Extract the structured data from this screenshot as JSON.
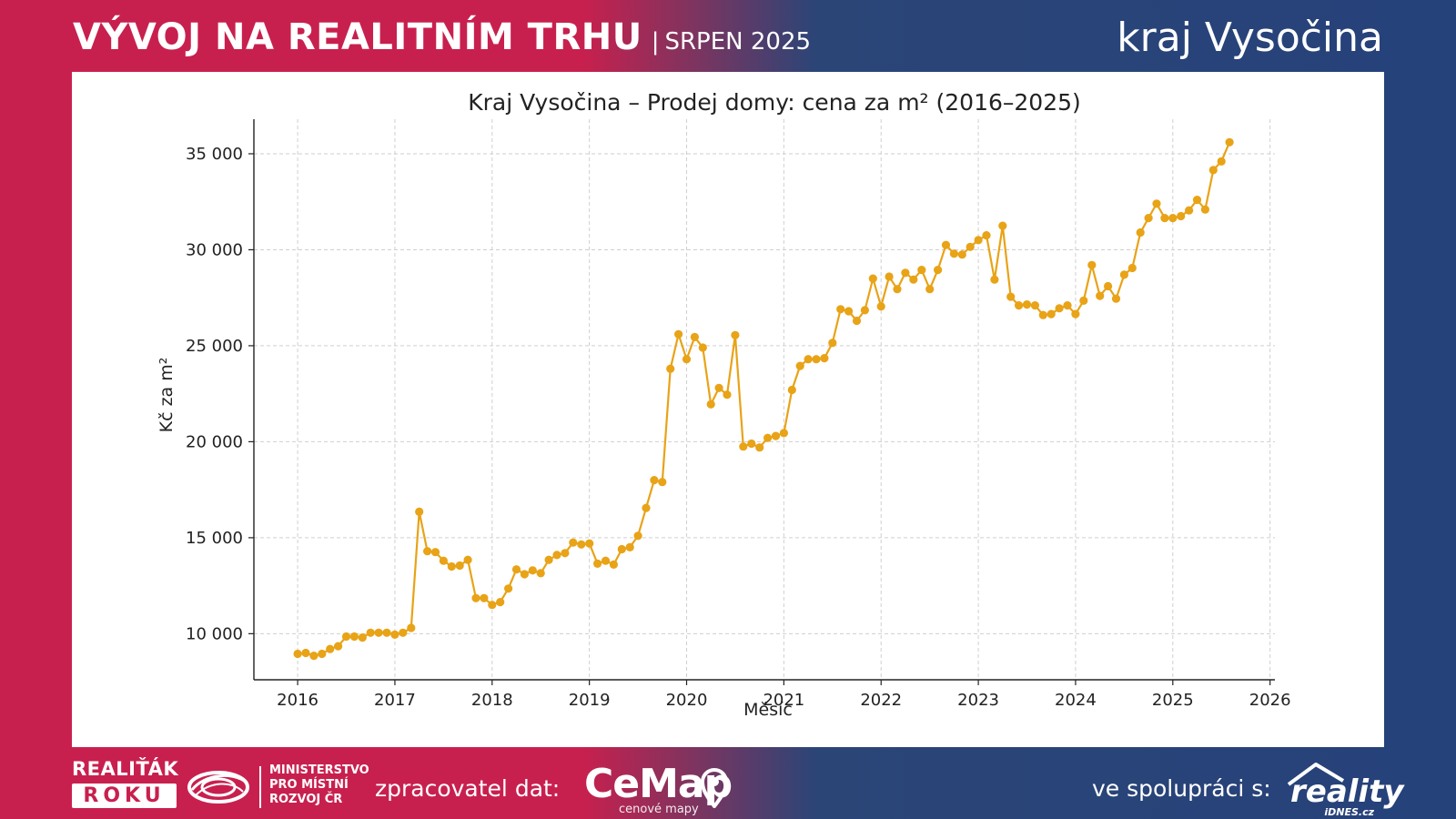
{
  "header": {
    "title": "VÝVOJ NA REALITNÍM TRHU",
    "separator": "|",
    "subtitle": "SRPEN 2025",
    "region": "kraj Vysočina"
  },
  "colors": {
    "brand_red": "#c8204e",
    "brand_blue": "#26427a",
    "series_line": "#e8a317",
    "grid": "#cfcfcf",
    "panel": "#ffffff"
  },
  "chart_data": {
    "type": "line",
    "title": "Kraj Vysočina – Prodej domy: cena za m² (2016–2025)",
    "xlabel": "Měsíc",
    "ylabel": "Kč za m²",
    "xlim": [
      2015.55,
      2026.05
    ],
    "ylim": [
      7600,
      36800
    ],
    "x_ticks": [
      2016,
      2017,
      2018,
      2019,
      2020,
      2021,
      2022,
      2023,
      2024,
      2025,
      2026
    ],
    "x_tick_labels": [
      "2016",
      "2017",
      "2018",
      "2019",
      "2020",
      "2021",
      "2022",
      "2023",
      "2024",
      "2025",
      "2026"
    ],
    "y_ticks": [
      10000,
      15000,
      20000,
      25000,
      30000,
      35000
    ],
    "y_tick_labels": [
      "10 000",
      "15 000",
      "20 000",
      "25 000",
      "30 000",
      "35 000"
    ],
    "grid": true,
    "marker": "circle",
    "x_start": "2016-01",
    "x_step": "1 month",
    "series": [
      {
        "values": [
          8950,
          9000,
          8850,
          8950,
          9200,
          9350,
          9850,
          9850,
          9800,
          10050,
          10050,
          10050,
          9950,
          10050,
          10300,
          16350,
          14300,
          14250,
          13800,
          13500,
          13550,
          13850,
          11850,
          11850,
          11500,
          11650,
          12350,
          13350,
          13100,
          13300,
          13150,
          13850,
          14100,
          14200,
          14750,
          14650,
          14700,
          13650,
          13800,
          13600,
          14400,
          14500,
          15100,
          16550,
          18000,
          17900,
          23800,
          25600,
          24300,
          25450,
          24900,
          21950,
          22800,
          22450,
          25550,
          19750,
          19900,
          19700,
          20200,
          20300,
          20450,
          22700,
          23950,
          24300,
          24300,
          24350,
          25150,
          26900,
          26800,
          26300,
          26850,
          28500,
          27050,
          28600,
          27950,
          28800,
          28450,
          28950,
          27950,
          28950,
          30250,
          29800,
          29750,
          30150,
          30500,
          30750,
          28450,
          31250,
          27550,
          27100,
          27150,
          27100,
          26600,
          26650,
          26950,
          27100,
          26650,
          27350,
          29200,
          27600,
          28100,
          27450,
          28700,
          29050,
          30900,
          31650,
          32400,
          31650,
          31650,
          31750,
          32050,
          32600,
          32100,
          34150,
          34600,
          35600
        ]
      }
    ]
  },
  "footer": {
    "realitak_top": "REALIŤÁK",
    "realitak_bottom": "ROKU",
    "ministry_line1": "MINISTERSTVO",
    "ministry_line2": "PRO MÍSTNÍ",
    "ministry_line3": "ROZVOJ ČR",
    "processed_by_label": "zpracovatel dat:",
    "cemap_name": "CeMap",
    "cemap_tagline": "cenové mapy",
    "cooperation_label": "ve spolupráci s:",
    "reality_name": "reality",
    "reality_sub": "iDNES.cz"
  }
}
